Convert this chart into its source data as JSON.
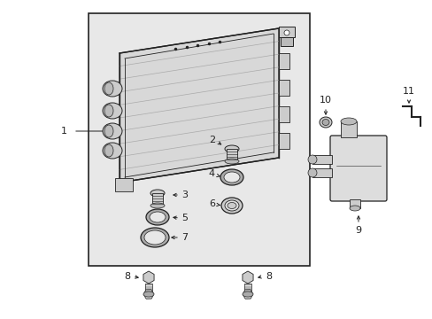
{
  "bg_color": "#ffffff",
  "box_fill": "#e8e8e8",
  "line_color": "#222222",
  "fig_w": 4.89,
  "fig_h": 3.6,
  "dpi": 100
}
